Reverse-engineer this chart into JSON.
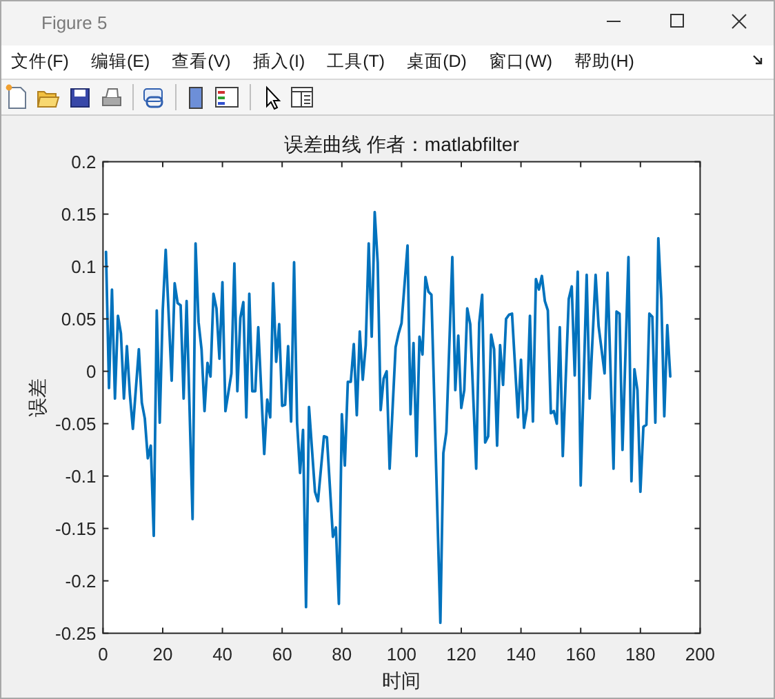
{
  "chart_data": {
    "type": "line",
    "title": "误差曲线 作者：matlabfilter",
    "xlabel": "时间",
    "ylabel": "误差",
    "x": [
      1,
      2,
      3,
      4,
      5,
      6,
      7,
      8,
      9,
      10,
      12,
      13,
      14,
      15,
      16,
      17,
      18,
      19,
      20,
      21,
      23,
      24,
      25,
      26,
      27,
      28,
      30,
      31,
      32,
      33,
      34,
      35,
      36,
      37,
      38,
      39,
      40,
      41,
      43,
      44,
      45,
      46,
      47,
      48,
      49,
      50,
      51,
      52,
      54,
      55,
      56,
      57,
      58,
      59,
      60,
      61,
      62,
      63,
      64,
      65,
      66,
      67,
      68,
      69,
      71,
      72,
      74,
      75,
      77,
      78,
      79,
      80,
      81,
      82,
      83,
      84,
      85,
      86,
      87,
      88,
      89,
      90,
      91,
      92,
      93,
      94,
      95,
      96,
      98,
      99,
      100,
      102,
      103,
      104,
      105,
      106,
      107,
      108,
      109,
      110,
      113,
      114,
      115,
      117,
      118,
      119,
      120,
      121,
      122,
      123,
      125,
      126,
      127,
      128,
      129,
      130,
      131,
      132,
      133,
      134,
      135,
      136,
      137,
      139,
      140,
      141,
      142,
      143,
      144,
      145,
      146,
      147,
      148,
      149,
      150,
      151,
      152,
      153,
      154,
      156,
      157,
      158,
      159,
      160,
      162,
      163,
      165,
      166,
      168,
      169,
      171,
      172,
      173,
      174,
      176,
      177,
      178,
      179,
      180,
      181,
      182,
      183,
      184,
      185,
      186,
      187,
      188,
      189,
      190
    ],
    "series": [
      {
        "color": "#0072bd",
        "values": [
          0.114,
          -0.016,
          0.078,
          -0.026,
          0.053,
          0.036,
          -0.026,
          0.024,
          -0.022,
          -0.055,
          0.021,
          -0.03,
          -0.045,
          -0.083,
          -0.071,
          -0.157,
          0.058,
          -0.049,
          0.058,
          0.116,
          -0.009,
          0.084,
          0.065,
          0.063,
          -0.026,
          0.067,
          -0.141,
          0.122,
          0.047,
          0.021,
          -0.038,
          0.008,
          -0.005,
          0.074,
          0.06,
          0.012,
          0.085,
          -0.038,
          -0.002,
          0.103,
          -0.019,
          0.051,
          0.066,
          -0.044,
          0.074,
          -0.019,
          -0.019,
          0.042,
          -0.079,
          -0.027,
          -0.044,
          0.084,
          0.009,
          0.045,
          -0.033,
          -0.032,
          0.024,
          -0.048,
          0.104,
          -0.049,
          -0.097,
          -0.056,
          -0.225,
          -0.034,
          -0.115,
          -0.124,
          -0.062,
          -0.063,
          -0.158,
          -0.149,
          -0.222,
          -0.041,
          -0.09,
          -0.01,
          -0.01,
          0.026,
          -0.042,
          0.038,
          -0.008,
          0.025,
          0.122,
          0.033,
          0.152,
          0.104,
          -0.037,
          -0.007,
          0,
          -0.093,
          0.023,
          0.036,
          0.046,
          0.12,
          -0.041,
          0.027,
          -0.081,
          0.033,
          0.016,
          0.09,
          0.076,
          0.073,
          -0.24,
          -0.078,
          -0.058,
          0.109,
          -0.018,
          0.034,
          -0.035,
          -0.018,
          0.06,
          0.045,
          -0.093,
          0.046,
          0.073,
          -0.068,
          -0.062,
          0.035,
          0.021,
          -0.071,
          0.025,
          -0.013,
          0.05,
          0.054,
          0.055,
          -0.044,
          0.011,
          -0.054,
          -0.036,
          0.053,
          -0.048,
          0.088,
          0.078,
          0.091,
          0.067,
          0.058,
          -0.04,
          -0.038,
          -0.05,
          0.042,
          -0.081,
          0.069,
          0.081,
          -0.004,
          0.095,
          -0.109,
          0.092,
          -0.026,
          0.092,
          0.043,
          -0.002,
          0.094,
          -0.093,
          0.057,
          0.055,
          -0.075,
          0.109,
          -0.105,
          0.002,
          -0.018,
          -0.115,
          -0.053,
          -0.051,
          0.055,
          0.052,
          -0.049,
          0.127,
          0.069,
          -0.043,
          0.044,
          -0.005
        ]
      }
    ],
    "xlim": [
      0,
      200
    ],
    "ylim": [
      -0.25,
      0.2
    ],
    "xticks": [
      0,
      20,
      40,
      60,
      80,
      100,
      120,
      140,
      160,
      180,
      200
    ],
    "yticks": [
      -0.25,
      -0.2,
      -0.15,
      -0.1,
      -0.05,
      0,
      0.05,
      0.1,
      0.15,
      0.2
    ],
    "marker": "none",
    "line_style": "solid",
    "annotations": [
      "Figure 5",
      "文件(F)",
      "编辑(E)",
      "查看(V)",
      "插入(I)",
      "工具(T)",
      "桌面(D)",
      "窗口(W)",
      "帮助(H)"
    ]
  }
}
